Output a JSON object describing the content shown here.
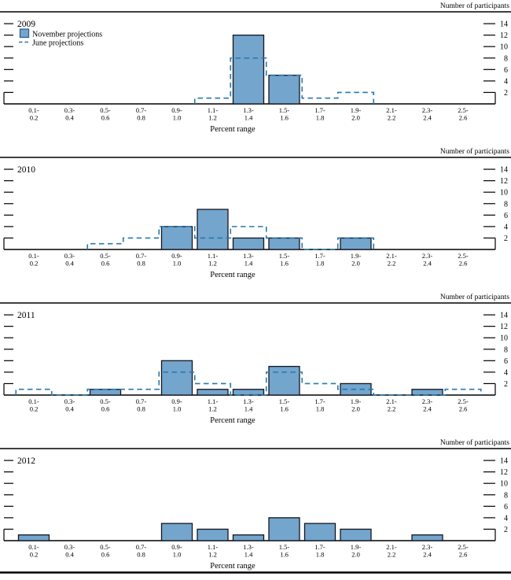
{
  "figure": {
    "right_axis_title": "Number of participants",
    "x_axis_title": "Percent range",
    "legend": {
      "november_label": "November projections",
      "june_label": "June projections"
    },
    "colors": {
      "bar_fill": "#73a5cd",
      "bar_border": "#15151f",
      "legend_square_border": "#2f6090",
      "june_dash": "#2678ae",
      "axis": "#000000"
    }
  },
  "chart_data": [
    {
      "type": "bar",
      "title": "2009",
      "xlabel": "Percent range",
      "ylabel": "Number of participants",
      "ylim": [
        0,
        15
      ],
      "yticks": [
        2,
        4,
        6,
        8,
        10,
        12,
        14
      ],
      "categories": [
        "0.1-0.2",
        "0.3-0.4",
        "0.5-0.6",
        "0.7-0.8",
        "0.9-1.0",
        "1.1-1.2",
        "1.3-1.4",
        "1.5-1.6",
        "1.7-1.8",
        "1.9-2.0",
        "2.1-2.2",
        "2.3-2.4",
        "2.5-2.6"
      ],
      "series": [
        {
          "name": "November projections",
          "style": "bar",
          "values": [
            0,
            0,
            0,
            0,
            0,
            0,
            12,
            5,
            0,
            0,
            0,
            0,
            0
          ]
        },
        {
          "name": "June projections",
          "style": "dashed-step",
          "values": [
            null,
            null,
            null,
            null,
            null,
            1,
            8,
            5,
            1,
            2,
            null,
            null,
            null
          ]
        }
      ],
      "legend_visible": true
    },
    {
      "type": "bar",
      "title": "2010",
      "xlabel": "Percent range",
      "ylabel": "Number of participants",
      "ylim": [
        0,
        15
      ],
      "yticks": [
        2,
        4,
        6,
        8,
        10,
        12,
        14
      ],
      "categories": [
        "0.1-0.2",
        "0.3-0.4",
        "0.5-0.6",
        "0.7-0.8",
        "0.9-1.0",
        "1.1-1.2",
        "1.3-1.4",
        "1.5-1.6",
        "1.7-1.8",
        "1.9-2.0",
        "2.1-2.2",
        "2.3-2.4",
        "2.5-2.6"
      ],
      "series": [
        {
          "name": "November projections",
          "style": "bar",
          "values": [
            0,
            0,
            0,
            0,
            4,
            7,
            2,
            2,
            0,
            2,
            0,
            0,
            0
          ]
        },
        {
          "name": "June projections",
          "style": "dashed-step",
          "values": [
            null,
            null,
            1,
            2,
            4,
            2,
            4,
            2,
            0,
            2,
            null,
            null,
            null
          ]
        }
      ],
      "legend_visible": false
    },
    {
      "type": "bar",
      "title": "2011",
      "xlabel": "Percent range",
      "ylabel": "Number of participants",
      "ylim": [
        0,
        15
      ],
      "yticks": [
        2,
        4,
        6,
        8,
        10,
        12,
        14
      ],
      "categories": [
        "0.1-0.2",
        "0.3-0.4",
        "0.5-0.6",
        "0.7-0.8",
        "0.9-1.0",
        "1.1-1.2",
        "1.3-1.4",
        "1.5-1.6",
        "1.7-1.8",
        "1.9-2.0",
        "2.1-2.2",
        "2.3-2.4",
        "2.5-2.6"
      ],
      "series": [
        {
          "name": "November projections",
          "style": "bar",
          "values": [
            0,
            0,
            1,
            0,
            6,
            1,
            1,
            5,
            0,
            2,
            0,
            1,
            0
          ]
        },
        {
          "name": "June projections",
          "style": "dashed-step",
          "values": [
            1,
            0,
            1,
            1,
            4,
            2,
            0,
            4,
            2,
            1,
            0,
            0,
            1
          ]
        }
      ],
      "legend_visible": false
    },
    {
      "type": "bar",
      "title": "2012",
      "xlabel": "Percent range",
      "ylabel": "Number of participants",
      "ylim": [
        0,
        15
      ],
      "yticks": [
        2,
        4,
        6,
        8,
        10,
        12,
        14
      ],
      "categories": [
        "0.1-0.2",
        "0.3-0.4",
        "0.5-0.6",
        "0.7-0.8",
        "0.9-1.0",
        "1.1-1.2",
        "1.3-1.4",
        "1.5-1.6",
        "1.7-1.8",
        "1.9-2.0",
        "2.1-2.2",
        "2.3-2.4",
        "2.5-2.6"
      ],
      "series": [
        {
          "name": "November projections",
          "style": "bar",
          "values": [
            1,
            0,
            0,
            0,
            3,
            2,
            1,
            4,
            3,
            2,
            0,
            1,
            0
          ]
        }
      ],
      "legend_visible": false,
      "bottom_rule": true
    }
  ]
}
